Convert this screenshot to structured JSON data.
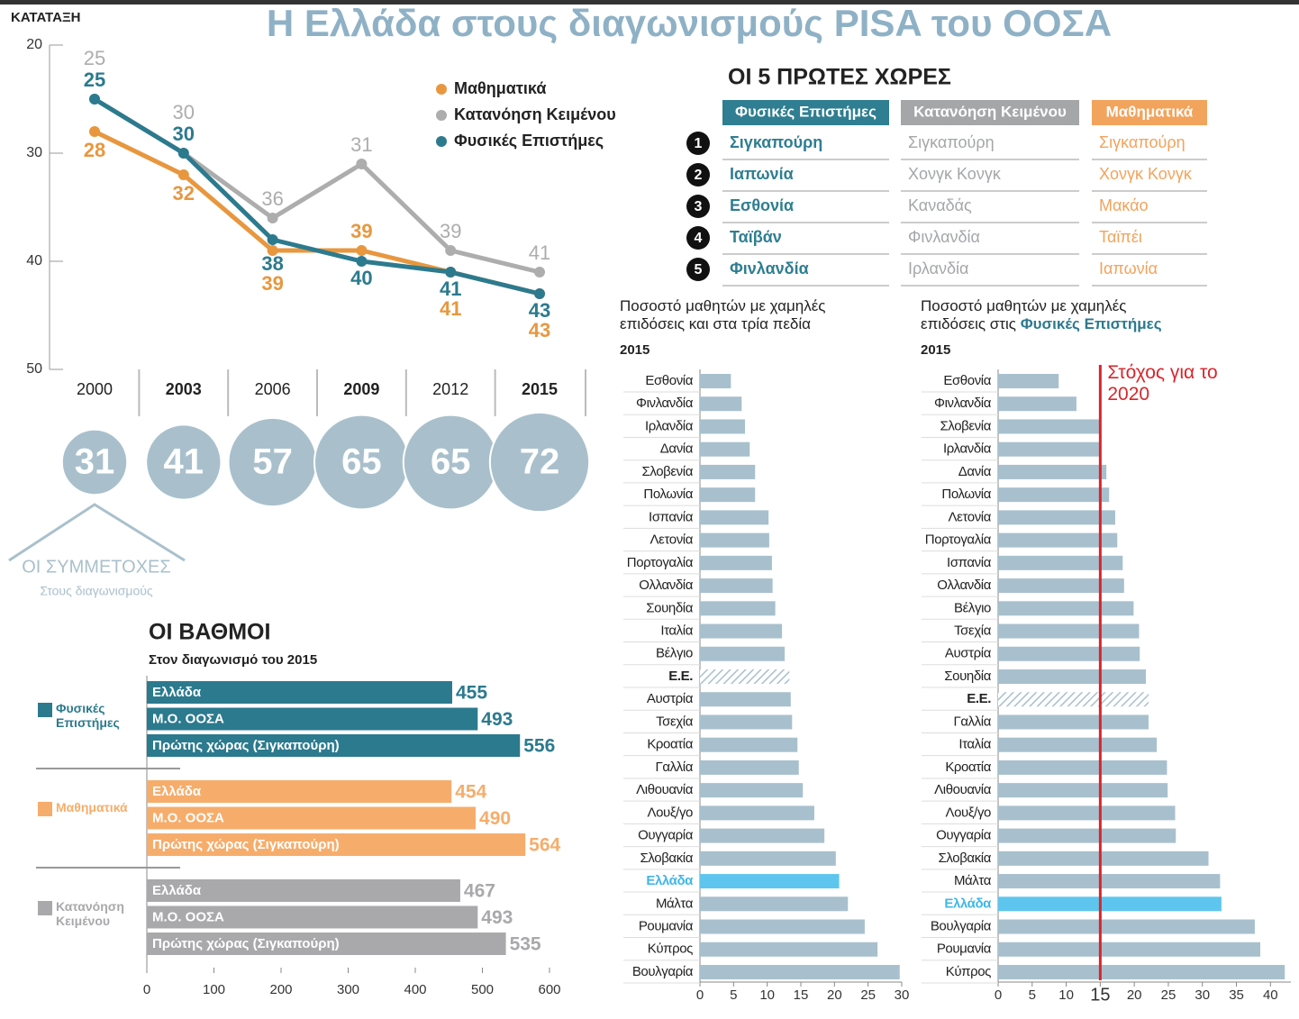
{
  "title": "Η Ελλάδα στους διαγωνισμούς PISA του ΟΟΣΑ",
  "top5": {
    "title": "ΟΙ 5 ΠΡΩΤΕΣ ΧΩΡΕΣ",
    "ranks": [
      1,
      2,
      3,
      4,
      5
    ],
    "columns": [
      {
        "header": "Φυσικές Επιστήμες",
        "color": "#2f7e91",
        "rows": [
          "Σιγκαπούρη",
          "Ιαπωνία",
          "Εσθονία",
          "Ταϊβάν",
          "Φινλανδία"
        ]
      },
      {
        "header": "Κατανόηση Κειμένου",
        "color": "#a4a6a8",
        "rows": [
          "Σιγκαπούρη",
          "Χονγκ Κονγκ",
          "Καναδάς",
          "Φινλανδία",
          "Ιρλανδία"
        ]
      },
      {
        "header": "Μαθηματικά",
        "color": "#f2a35c",
        "rows": [
          "Σιγκαπούρη",
          "Χονγκ Κονγκ",
          "Μακάο",
          "Ταϊπέι",
          "Ιαπωνία"
        ]
      }
    ]
  },
  "chart_data": [
    {
      "type": "line",
      "y_label": "ΚΑΤΑΤΑΞΗ",
      "categories": [
        "2000",
        "2003",
        "2006",
        "2009",
        "2012",
        "2015"
      ],
      "series": [
        {
          "name": "Μαθηματικά",
          "color": "#e8973f",
          "values": [
            28,
            32,
            39,
            39,
            41,
            43
          ]
        },
        {
          "name": "Κατανόηση Κειμένου",
          "color": "#adadad",
          "values": [
            25,
            30,
            36,
            31,
            39,
            41
          ]
        },
        {
          "name": "Φυσικές Επιστήμες",
          "color": "#2c7a8e",
          "values": [
            25,
            30,
            38,
            40,
            41,
            43
          ]
        }
      ],
      "ylim": [
        20,
        50
      ],
      "y_reversed": true,
      "yticks": [
        20,
        30,
        40,
        50
      ],
      "participants": {
        "label": "ΟΙ ΣΥΜΜΕΤΟΧΕΣ",
        "sublabel": "Στους διαγωνισμούς",
        "color": "#a9c0cc",
        "values": [
          31,
          41,
          57,
          65,
          65,
          72
        ]
      }
    },
    {
      "type": "hbar_grouped",
      "title": "ΟΙ ΒΑΘΜΟΙ",
      "subtitle": "Στον διαγωνισμό του 2015",
      "categories": [
        "Ελλάδα",
        "Μ.Ο. ΟΟΣΑ",
        "Πρώτης χώρας (Σιγκαπούρη)"
      ],
      "series": [
        {
          "name": "Φυσικές Επιστήμες",
          "color": "#2c7a8e",
          "values": [
            455,
            493,
            556
          ]
        },
        {
          "name": "Μαθηματικά",
          "color": "#f6ad6b",
          "values": [
            454,
            490,
            564
          ]
        },
        {
          "name": "Κατανόηση Κειμένου",
          "color": "#a9a9ab",
          "values": [
            467,
            493,
            535
          ]
        }
      ],
      "xlim": [
        0,
        600
      ],
      "xticks": [
        0,
        100,
        200,
        300,
        400,
        500,
        600
      ]
    },
    {
      "type": "hbar",
      "title": "Ποσοστό μαθητών με χαμηλές επιδόσεις και στα τρία πεδία",
      "subtitle": "2015",
      "categories": [
        "Εσθονία",
        "Φινλανδία",
        "Ιρλανδία",
        "Δανία",
        "Σλοβενία",
        "Πολωνία",
        "Ισπανία",
        "Λετονία",
        "Πορτογαλία",
        "Ολλανδία",
        "Σουηδία",
        "Ιταλία",
        "Βέλγιο",
        "Ε.Ε.",
        "Αυστρία",
        "Τσεχία",
        "Κροατία",
        "Γαλλία",
        "Λιθουανία",
        "Λουξ/γο",
        "Ουγγαρία",
        "Σλοβακία",
        "Ελλάδα",
        "Μάλτα",
        "Ρουμανία",
        "Κύπρος",
        "Βουλγαρία"
      ],
      "values": [
        4.6,
        6.2,
        6.7,
        7.4,
        8.2,
        8.2,
        10.2,
        10.3,
        10.7,
        10.8,
        11.2,
        12.2,
        12.6,
        13.3,
        13.5,
        13.7,
        14.5,
        14.7,
        15.3,
        17.0,
        18.5,
        20.2,
        20.7,
        22.0,
        24.5,
        26.4,
        29.7
      ],
      "color": "#a8c0cd",
      "highlight_index": 22,
      "highlight_color": "#5ec6ee",
      "hatched_index": 13,
      "xlim": [
        0,
        30
      ],
      "xticks": [
        0,
        5,
        10,
        15,
        20,
        25,
        30
      ]
    },
    {
      "type": "hbar",
      "title": "Ποσοστό μαθητών με χαμηλές επιδόσεις στις",
      "title_emphasis": "Φυσικές Επιστήμες",
      "subtitle": "2015",
      "categories": [
        "Εσθονία",
        "Φινλανδία",
        "Σλοβενία",
        "Ιρλανδία",
        "Δανία",
        "Πολωνία",
        "Λετονία",
        "Πορτογαλία",
        "Ισπανία",
        "Ολλανδία",
        "Βέλγιο",
        "Τσεχία",
        "Αυστρία",
        "Σουηδία",
        "Ε.Ε.",
        "Γαλλία",
        "Ιταλία",
        "Κροατία",
        "Λιθουανία",
        "Λουξ/γο",
        "Ουγγαρία",
        "Σλοβακία",
        "Μάλτα",
        "Ελλάδα",
        "Βουλγαρία",
        "Ρουμανία",
        "Κύπρος"
      ],
      "values": [
        8.9,
        11.5,
        15.0,
        15.1,
        15.9,
        16.3,
        17.2,
        17.5,
        18.3,
        18.5,
        19.9,
        20.7,
        20.8,
        21.7,
        22.1,
        22.1,
        23.3,
        24.8,
        24.9,
        26.0,
        26.1,
        30.9,
        32.6,
        32.8,
        37.7,
        38.5,
        42.1
      ],
      "color": "#a8c0cd",
      "highlight_index": 23,
      "highlight_color": "#5ec6ee",
      "hatched_index": 14,
      "xlim": [
        0,
        43
      ],
      "xticks": [
        0,
        5,
        10,
        15,
        20,
        25,
        30,
        35,
        40
      ],
      "target": {
        "value": 15,
        "label": "Στόχος για το 2020",
        "color": "#d7262c"
      }
    }
  ]
}
